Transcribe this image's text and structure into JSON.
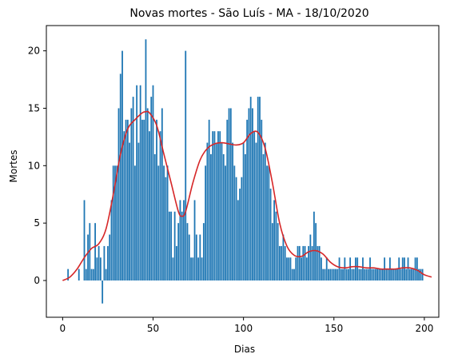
{
  "chart_data": {
    "type": "bar",
    "title": "Novas mortes - São Luís - MA - 18/10/2020",
    "xlabel": "Dias",
    "ylabel": "Mortes",
    "xlim": [
      -9,
      208
    ],
    "ylim": [
      -3.2,
      22.2
    ],
    "x_ticks": [
      0,
      50,
      100,
      150,
      200
    ],
    "y_ticks": [
      0,
      5,
      10,
      15,
      20
    ],
    "grid": false,
    "colors": {
      "bars": "#1f77b4",
      "trend": "#d62728",
      "axes": "#000000"
    },
    "series": [
      {
        "kind": "bar",
        "values": [
          0,
          0,
          0,
          1,
          0,
          0,
          0,
          0,
          0,
          1,
          0,
          0,
          7,
          1,
          4,
          5,
          1,
          1,
          5,
          2,
          3,
          2,
          -2,
          3,
          1,
          3,
          4,
          7,
          10,
          10,
          10,
          15,
          18,
          20,
          13,
          14,
          14,
          12,
          15,
          16,
          10,
          17,
          12,
          17,
          14,
          14,
          21,
          15,
          13,
          16,
          17,
          11,
          14,
          10,
          13,
          15,
          10,
          9,
          10,
          6,
          6,
          2,
          6,
          3,
          5,
          7,
          6,
          7,
          20,
          5,
          4,
          2,
          2,
          7,
          4,
          2,
          4,
          2,
          5,
          10,
          12,
          14,
          11,
          13,
          13,
          12,
          13,
          13,
          12,
          11,
          10,
          14,
          15,
          15,
          12,
          10,
          9,
          7,
          8,
          9,
          12,
          11,
          14,
          15,
          16,
          15,
          13,
          12,
          16,
          16,
          14,
          11,
          12,
          10,
          10,
          8,
          5,
          7,
          6,
          5,
          3,
          3,
          4,
          3,
          2,
          2,
          2,
          1,
          1,
          2,
          3,
          3,
          2,
          3,
          3,
          2,
          3,
          4,
          3,
          6,
          5,
          3,
          3,
          2,
          1,
          1,
          2,
          1,
          1,
          1,
          1,
          1,
          1,
          2,
          1,
          1,
          2,
          1,
          1,
          2,
          1,
          1,
          2,
          2,
          1,
          1,
          2,
          1,
          1,
          1,
          2,
          1,
          1,
          1,
          1,
          1,
          1,
          1,
          2,
          1,
          1,
          2,
          1,
          1,
          1,
          1,
          2,
          1,
          2,
          2,
          1,
          2,
          1,
          1,
          1,
          2,
          2,
          1,
          1,
          1,
          0,
          0,
          0,
          0,
          0
        ]
      },
      {
        "kind": "line",
        "x": [
          0,
          4,
          8,
          12,
          16,
          20,
          24,
          28,
          32,
          36,
          40,
          44,
          46,
          48,
          52,
          56,
          60,
          64,
          66,
          68,
          72,
          76,
          80,
          84,
          88,
          92,
          96,
          100,
          104,
          108,
          112,
          116,
          120,
          124,
          128,
          132,
          136,
          140,
          144,
          148,
          152,
          156,
          160,
          164,
          168,
          172,
          176,
          180,
          184,
          188,
          192,
          196,
          200,
          204
        ],
        "y": [
          0,
          0.3,
          1,
          2,
          2.8,
          3.2,
          4.5,
          7.5,
          11,
          13.2,
          14,
          14.6,
          14.7,
          14.6,
          13.5,
          11,
          8.5,
          6,
          5.6,
          6,
          8.5,
          10.5,
          11.5,
          11.9,
          12,
          11.9,
          11.8,
          12,
          12.8,
          12.9,
          11.5,
          8.5,
          5,
          3,
          2.2,
          2.1,
          2.5,
          2.6,
          2.3,
          1.6,
          1.2,
          1.1,
          1.2,
          1.2,
          1.1,
          1.1,
          1,
          1,
          1,
          1.1,
          1.1,
          0.9,
          0.5,
          0.3
        ]
      }
    ]
  }
}
